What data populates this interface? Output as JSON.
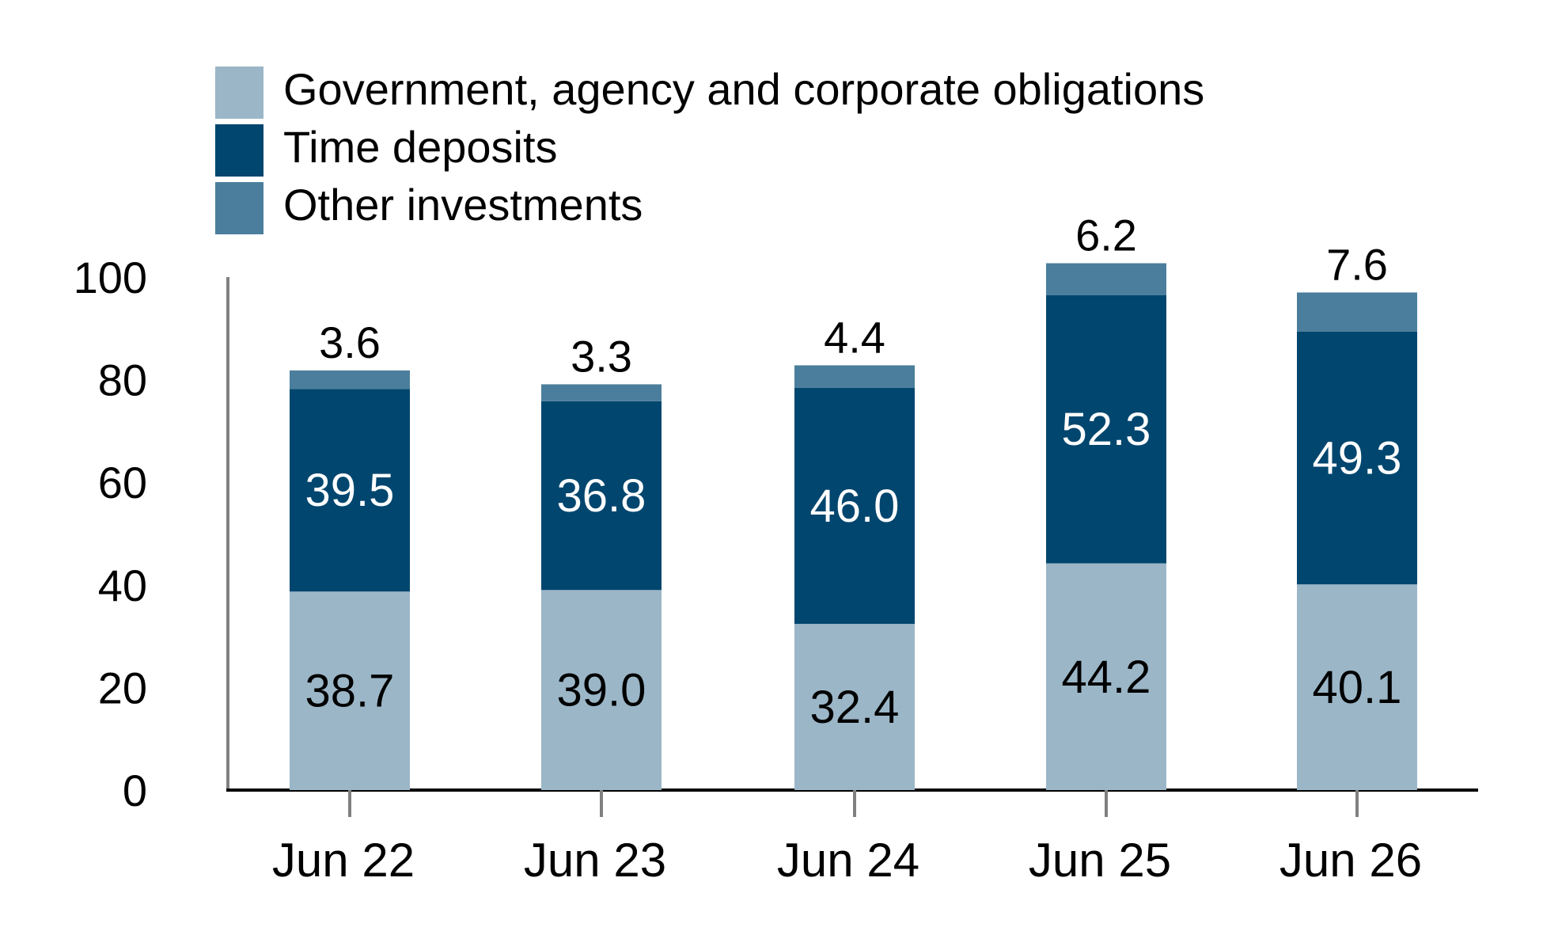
{
  "chart_data": {
    "type": "bar",
    "stacked": true,
    "categories": [
      "Jun 22",
      "Jun 23",
      "Jun 24",
      "Jun 25",
      "Jun 26"
    ],
    "series": [
      {
        "name": "Government, agency and corporate obligations",
        "values": [
          38.7,
          39.0,
          32.4,
          44.2,
          40.1
        ],
        "color": "#9bb6c7"
      },
      {
        "name": "Time deposits",
        "values": [
          39.5,
          36.8,
          46.0,
          52.3,
          49.3
        ],
        "color": "#00466e"
      },
      {
        "name": "Other investments",
        "values": [
          3.6,
          3.3,
          4.4,
          6.2,
          7.6
        ],
        "color": "#4b7e9c"
      }
    ],
    "ylim": [
      0,
      100
    ],
    "yticks": [
      0,
      20,
      40,
      60,
      80,
      100
    ],
    "grid": false,
    "legend_position": "top-left"
  }
}
